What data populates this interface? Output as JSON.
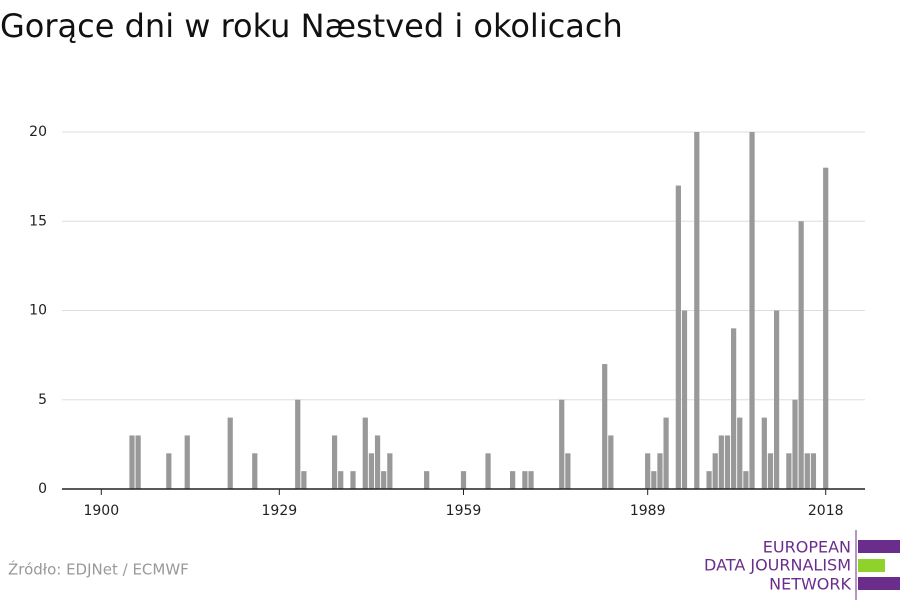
{
  "chart_data": {
    "type": "bar",
    "title": "Gorące dni w roku Næstved i okolicach",
    "source": "Źródło: EDJNet / ECMWF",
    "logo": [
      "EUROPEAN",
      "DATA JOURNALISM",
      "NETWORK"
    ],
    "x": [
      1905,
      1906,
      1911,
      1914,
      1921,
      1925,
      1932,
      1933,
      1938,
      1939,
      1941,
      1943,
      1944,
      1945,
      1946,
      1947,
      1953,
      1959,
      1963,
      1967,
      1969,
      1970,
      1975,
      1976,
      1982,
      1983,
      1989,
      1990,
      1991,
      1992,
      1994,
      1995,
      1997,
      1999,
      2000,
      2001,
      2002,
      2003,
      2004,
      2005,
      2006,
      2008,
      2009,
      2010,
      2012,
      2013,
      2014,
      2015,
      2016,
      2018
    ],
    "values": [
      3,
      3,
      2,
      3,
      4,
      2,
      5,
      1,
      3,
      1,
      1,
      4,
      2,
      3,
      1,
      2,
      1,
      1,
      2,
      1,
      1,
      1,
      5,
      2,
      7,
      3,
      2,
      1,
      2,
      4,
      17,
      10,
      20,
      1,
      2,
      3,
      3,
      9,
      4,
      1,
      20,
      4,
      2,
      10,
      2,
      5,
      15,
      2,
      2,
      18
    ],
    "color": "#999999",
    "xlim": [
      1893.6,
      2024.4
    ],
    "xticks": [
      1900,
      1929,
      1959,
      1989,
      2018
    ],
    "ylim": [
      0,
      20
    ],
    "yticks": [
      0,
      5,
      10,
      15,
      20
    ],
    "grid": true
  }
}
